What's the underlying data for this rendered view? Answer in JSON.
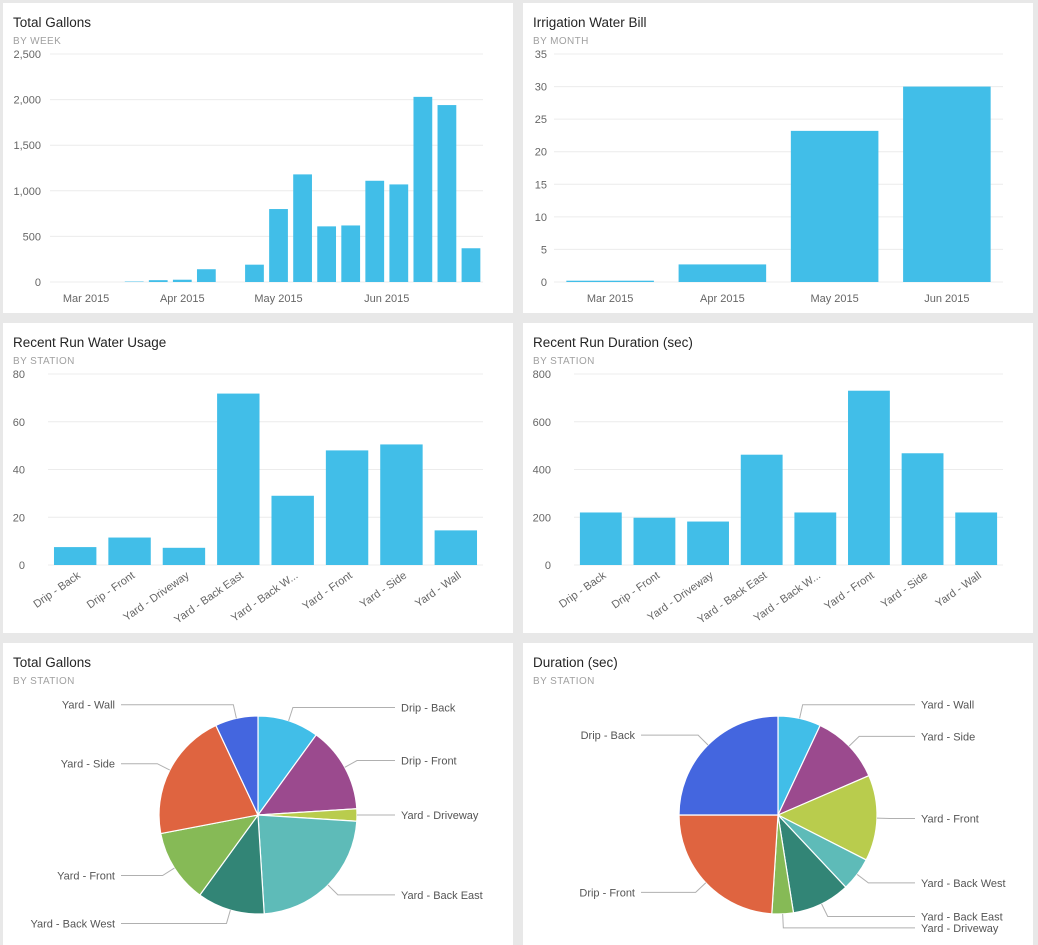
{
  "colors": {
    "bar": "#41bee8",
    "grid": "#ececec",
    "axis_text": "#666666",
    "background": "#e8e8e8",
    "tile": "#ffffff",
    "leader_line": "#b0b0b0"
  },
  "tiles": [
    {
      "title": "Total Gallons",
      "subtitle": "BY WEEK",
      "chart_data": {
        "type": "bar",
        "title": "Total Gallons",
        "subtitle": "BY WEEK",
        "ylim": [
          0,
          2500
        ],
        "yticks": [
          0,
          500,
          1000,
          1500,
          2000,
          2500
        ],
        "ytick_labels": [
          "0",
          "500",
          "1,000",
          "1,500",
          "2,000",
          "2,500"
        ],
        "grid": true,
        "x_labels": [
          "Mar 2015",
          "Apr 2015",
          "May 2015",
          "Jun 2015"
        ],
        "x_label_positions": [
          1,
          5,
          9,
          13.5
        ],
        "values": [
          0,
          0,
          0,
          5,
          20,
          25,
          140,
          0,
          190,
          800,
          1180,
          610,
          620,
          1110,
          1070,
          2030,
          1940,
          370
        ]
      }
    },
    {
      "title": "Irrigation Water Bill",
      "subtitle": "BY MONTH",
      "chart_data": {
        "type": "bar",
        "title": "Irrigation Water Bill",
        "subtitle": "BY MONTH",
        "ylim": [
          0,
          35
        ],
        "yticks": [
          0,
          5,
          10,
          15,
          20,
          25,
          30,
          35
        ],
        "ytick_labels": [
          "0",
          "5",
          "10",
          "15",
          "20",
          "25",
          "30",
          "35"
        ],
        "grid": true,
        "categories": [
          "Mar 2015",
          "Apr 2015",
          "May 2015",
          "Jun 2015"
        ],
        "values": [
          0.2,
          2.7,
          23.2,
          30.0
        ]
      }
    },
    {
      "title": "Recent Run Water Usage",
      "subtitle": "BY STATION",
      "chart_data": {
        "type": "bar",
        "title": "Recent Run Water Usage",
        "subtitle": "BY STATION",
        "ylim": [
          0,
          80
        ],
        "yticks": [
          0,
          20,
          40,
          60,
          80
        ],
        "ytick_labels": [
          "0",
          "20",
          "40",
          "60",
          "80"
        ],
        "grid": true,
        "categories": [
          "Drip - Back",
          "Drip - Front",
          "Yard - Driveway",
          "Yard - Back East",
          "Yard - Back W...",
          "Yard - Front",
          "Yard - Side",
          "Yard - Wall"
        ],
        "values": [
          7.5,
          11.5,
          7.2,
          71.8,
          29.0,
          48.0,
          50.5,
          14.5
        ]
      }
    },
    {
      "title": "Recent Run Duration (sec)",
      "subtitle": "BY STATION",
      "chart_data": {
        "type": "bar",
        "title": "Recent Run Duration (sec)",
        "subtitle": "BY STATION",
        "ylim": [
          0,
          800
        ],
        "yticks": [
          0,
          200,
          400,
          600,
          800
        ],
        "ytick_labels": [
          "0",
          "200",
          "400",
          "600",
          "800"
        ],
        "grid": true,
        "categories": [
          "Drip - Back",
          "Drip - Front",
          "Yard - Driveway",
          "Yard - Back East",
          "Yard - Back W...",
          "Yard - Front",
          "Yard - Side",
          "Yard - Wall"
        ],
        "values": [
          220,
          198,
          182,
          462,
          220,
          730,
          468,
          220
        ]
      }
    },
    {
      "title": "Total Gallons",
      "subtitle": "BY STATION",
      "chart_data": {
        "type": "pie",
        "title": "Total Gallons",
        "subtitle": "BY STATION",
        "slices": [
          {
            "label": "Drip - Back",
            "value": 10.0,
            "color": "#41bee8"
          },
          {
            "label": "Drip - Front",
            "value": 14.0,
            "color": "#9b4a8e"
          },
          {
            "label": "Yard - Driveway",
            "value": 2.0,
            "color": "#b9cc4d"
          },
          {
            "label": "Yard - Back East",
            "value": 23.0,
            "color": "#5ebbb8"
          },
          {
            "label": "Yard - Back West",
            "value": 11.0,
            "color": "#328576"
          },
          {
            "label": "Yard - Front",
            "value": 12.0,
            "color": "#86ba56"
          },
          {
            "label": "Yard - Side",
            "value": 21.0,
            "color": "#df6440"
          },
          {
            "label": "Yard - Wall",
            "value": 7.0,
            "color": "#4466df"
          }
        ]
      }
    },
    {
      "title": "Duration (sec)",
      "subtitle": "BY STATION",
      "chart_data": {
        "type": "pie",
        "title": "Duration (sec)",
        "subtitle": "BY STATION",
        "slices": [
          {
            "label": "Yard - Wall",
            "value": 7.0,
            "color": "#41bee8"
          },
          {
            "label": "Yard - Side",
            "value": 11.5,
            "color": "#9b4a8e"
          },
          {
            "label": "Yard - Front",
            "value": 14.0,
            "color": "#b9cc4d"
          },
          {
            "label": "Yard - Back West",
            "value": 5.5,
            "color": "#5ebbb8"
          },
          {
            "label": "Yard - Back East",
            "value": 9.5,
            "color": "#328576"
          },
          {
            "label": "Yard - Driveway",
            "value": 3.5,
            "color": "#86ba56"
          },
          {
            "label": "Drip - Front",
            "value": 24.0,
            "color": "#df6440"
          },
          {
            "label": "Drip - Back",
            "value": 25.0,
            "color": "#4466df"
          }
        ]
      }
    }
  ]
}
